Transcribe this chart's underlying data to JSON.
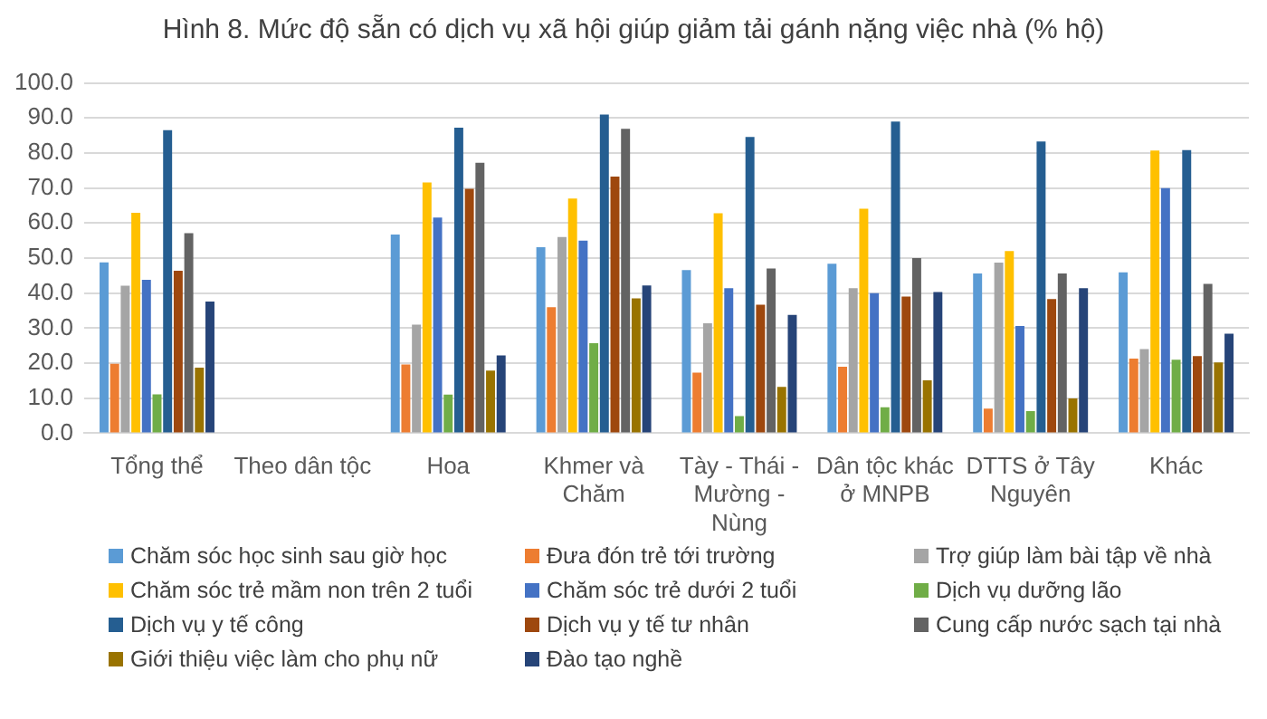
{
  "chart_data": {
    "type": "bar",
    "title": "Hình 8. Mức độ sẵn có dịch vụ xã hội giúp giảm tải gánh nặng việc nhà (% hộ)",
    "categories": [
      "Tổng thể",
      "Theo dân tộc",
      "Hoa",
      "Khmer và Chăm",
      "Tày - Thái - Mường - Nùng",
      "Dân tộc khác ở MNPB",
      "DTTS ở Tây Nguyên",
      "Khác"
    ],
    "series": [
      {
        "name": "Chăm sóc học sinh sau giờ học",
        "color": "#5b9bd5",
        "values": [
          48.8,
          null,
          56.7,
          53.1,
          46.6,
          48.4,
          45.6,
          45.9
        ]
      },
      {
        "name": "Đưa đón trẻ tới trường",
        "color": "#ed7d31",
        "values": [
          19.8,
          null,
          19.6,
          36.0,
          17.3,
          19.0,
          7.0,
          21.3
        ]
      },
      {
        "name": "Trợ giúp làm bài tập về nhà",
        "color": "#a5a5a5",
        "values": [
          42.1,
          null,
          31.0,
          56.0,
          31.4,
          41.4,
          48.7,
          24.0
        ]
      },
      {
        "name": "Chăm sóc trẻ mầm non trên 2 tuổi",
        "color": "#ffc000",
        "values": [
          62.9,
          null,
          71.6,
          67.0,
          62.8,
          64.1,
          52.0,
          80.7
        ]
      },
      {
        "name": "Chăm sóc trẻ dưới 2 tuổi",
        "color": "#4472c4",
        "values": [
          43.8,
          null,
          61.6,
          55.0,
          41.4,
          40.0,
          30.6,
          70.0
        ]
      },
      {
        "name": "Dịch vụ dưỡng lão",
        "color": "#70ad47",
        "values": [
          11.1,
          null,
          11.0,
          25.7,
          4.9,
          7.4,
          6.3,
          21.0
        ]
      },
      {
        "name": "Dịch vụ y tế công",
        "color": "#255e91",
        "values": [
          86.5,
          null,
          87.2,
          91.0,
          84.6,
          89.0,
          83.3,
          80.8
        ]
      },
      {
        "name": "Dịch vụ y tế tư nhân",
        "color": "#9e480e",
        "values": [
          46.4,
          null,
          69.8,
          73.3,
          36.7,
          39.0,
          38.3,
          22.0
        ]
      },
      {
        "name": "Cung cấp nước sạch tại nhà",
        "color": "#636363",
        "values": [
          57.1,
          null,
          77.2,
          86.9,
          47.0,
          50.0,
          45.6,
          42.6
        ]
      },
      {
        "name": "Giới thiệu việc làm cho phụ nữ",
        "color": "#997300",
        "values": [
          18.7,
          null,
          17.9,
          38.5,
          13.2,
          15.1,
          9.9,
          20.2
        ]
      },
      {
        "name": "Đào tạo nghề",
        "color": "#264478",
        "values": [
          37.6,
          null,
          22.2,
          42.2,
          33.8,
          40.3,
          41.4,
          28.4
        ]
      }
    ],
    "ylim": [
      0,
      100
    ],
    "yticks": [
      {
        "value": 0,
        "label": "0.0"
      },
      {
        "value": 10,
        "label": "10.0"
      },
      {
        "value": 20,
        "label": "20.0"
      },
      {
        "value": 30,
        "label": "30.0"
      },
      {
        "value": 40,
        "label": "40.0"
      },
      {
        "value": 50,
        "label": "50.0"
      },
      {
        "value": 60,
        "label": "60.0"
      },
      {
        "value": 70,
        "label": "70.0"
      },
      {
        "value": 80,
        "label": "80.0"
      },
      {
        "value": 90,
        "label": "90.0"
      },
      {
        "value": 100,
        "label": "100.0"
      }
    ],
    "grid": "y",
    "legend": "bottom"
  }
}
